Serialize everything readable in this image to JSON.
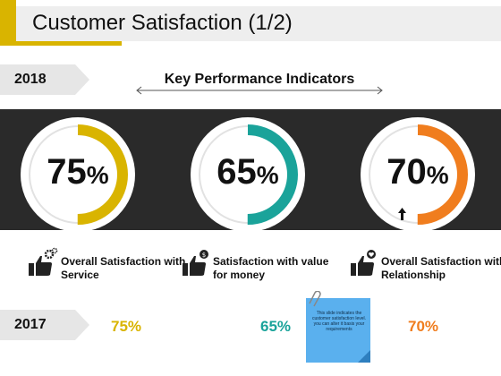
{
  "title": "Customer Satisfaction (1/2)",
  "colors": {
    "yellow": "#d9b400",
    "teal": "#1aa39a",
    "orange": "#f07d1e",
    "dark": "#2a2a2a",
    "note_blue": "#5ab0ee"
  },
  "kpi_title": "Key Performance Indicators",
  "year_current": "2018",
  "year_previous": "2017",
  "gauges": [
    {
      "value": "75",
      "unit": "%",
      "fraction": 0.5,
      "color": "#d9b400",
      "icon": ""
    },
    {
      "value": "65",
      "unit": "%",
      "fraction": 0.5,
      "color": "#1aa39a",
      "icon": ""
    },
    {
      "value": "70",
      "unit": "%",
      "fraction": 0.5,
      "color": "#f07d1e",
      "icon": "up-arrow-icon"
    }
  ],
  "metrics": [
    {
      "label": "Overall Satisfaction with Service",
      "icon": "thumbs-up-gears-icon"
    },
    {
      "label": "Satisfaction with value for money",
      "icon": "thumbs-up-dollar-icon"
    },
    {
      "label": "Overall Satisfaction with Relationship",
      "icon": "thumbs-up-heart-icon"
    }
  ],
  "previous_values": [
    "75%",
    "65%",
    "70%"
  ],
  "note": {
    "text": "This slide indicates the customer satisfaction level. you can alter it basis your requirements",
    "icon": "paper-clip-icon"
  }
}
